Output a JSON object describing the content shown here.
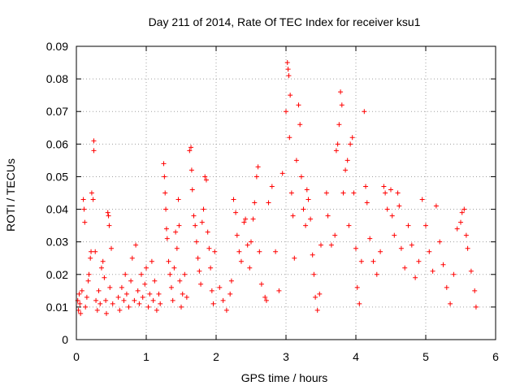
{
  "chart_data": {
    "type": "scatter",
    "title": "Day 211 of 2014, Rate Of TEC Index for receiver ksu1",
    "xlabel": "GPS time / hours",
    "ylabel": "ROTI / TECUs",
    "xlim": [
      0,
      6
    ],
    "ylim": [
      0,
      0.09
    ],
    "xticks": [
      0,
      1,
      2,
      3,
      4,
      5,
      6
    ],
    "yticks": [
      0,
      0.01,
      0.02,
      0.03,
      0.04,
      0.05,
      0.06,
      0.07,
      0.08,
      0.09
    ],
    "xtick_labels": [
      "0",
      "1",
      "2",
      "3",
      "4",
      "5",
      "6"
    ],
    "ytick_labels": [
      "0",
      "0.01",
      "0.02",
      "0.03",
      "0.04",
      "0.05",
      "0.06",
      "0.07",
      "0.08",
      "0.09"
    ],
    "grid": true,
    "marker": "+",
    "series_color": "#ff0000",
    "series": [
      {
        "name": "ROTI",
        "points": [
          [
            0.02,
            0.012
          ],
          [
            0.03,
            0.009
          ],
          [
            0.04,
            0.014
          ],
          [
            0.05,
            0.011
          ],
          [
            0.06,
            0.008
          ],
          [
            0.08,
            0.015
          ],
          [
            0.1,
            0.043
          ],
          [
            0.11,
            0.04
          ],
          [
            0.12,
            0.036
          ],
          [
            0.13,
            0.01
          ],
          [
            0.15,
            0.013
          ],
          [
            0.17,
            0.018
          ],
          [
            0.18,
            0.02
          ],
          [
            0.2,
            0.025
          ],
          [
            0.21,
            0.027
          ],
          [
            0.22,
            0.045
          ],
          [
            0.24,
            0.043
          ],
          [
            0.25,
            0.061
          ],
          [
            0.25,
            0.058
          ],
          [
            0.27,
            0.027
          ],
          [
            0.28,
            0.012
          ],
          [
            0.3,
            0.009
          ],
          [
            0.32,
            0.015
          ],
          [
            0.34,
            0.011
          ],
          [
            0.36,
            0.022
          ],
          [
            0.38,
            0.024
          ],
          [
            0.4,
            0.019
          ],
          [
            0.42,
            0.012
          ],
          [
            0.43,
            0.008
          ],
          [
            0.45,
            0.039
          ],
          [
            0.46,
            0.038
          ],
          [
            0.47,
            0.035
          ],
          [
            0.48,
            0.016
          ],
          [
            0.5,
            0.028
          ],
          [
            0.52,
            0.011
          ],
          [
            0.6,
            0.013
          ],
          [
            0.62,
            0.009
          ],
          [
            0.65,
            0.016
          ],
          [
            0.68,
            0.012
          ],
          [
            0.7,
            0.02
          ],
          [
            0.72,
            0.014
          ],
          [
            0.75,
            0.01
          ],
          [
            0.78,
            0.018
          ],
          [
            0.8,
            0.025
          ],
          [
            0.83,
            0.012
          ],
          [
            0.85,
            0.029
          ],
          [
            0.88,
            0.015
          ],
          [
            0.9,
            0.011
          ],
          [
            0.93,
            0.02
          ],
          [
            0.95,
            0.013
          ],
          [
            0.98,
            0.017
          ],
          [
            1.0,
            0.022
          ],
          [
            1.03,
            0.01
          ],
          [
            1.05,
            0.014
          ],
          [
            1.08,
            0.024
          ],
          [
            1.1,
            0.012
          ],
          [
            1.12,
            0.018
          ],
          [
            1.15,
            0.009
          ],
          [
            1.18,
            0.014
          ],
          [
            1.2,
            0.011
          ],
          [
            1.25,
            0.054
          ],
          [
            1.26,
            0.05
          ],
          [
            1.27,
            0.045
          ],
          [
            1.28,
            0.04
          ],
          [
            1.29,
            0.034
          ],
          [
            1.3,
            0.031
          ],
          [
            1.32,
            0.024
          ],
          [
            1.34,
            0.02
          ],
          [
            1.36,
            0.016
          ],
          [
            1.38,
            0.012
          ],
          [
            1.4,
            0.022
          ],
          [
            1.42,
            0.033
          ],
          [
            1.44,
            0.028
          ],
          [
            1.46,
            0.043
          ],
          [
            1.47,
            0.035
          ],
          [
            1.48,
            0.018
          ],
          [
            1.5,
            0.01
          ],
          [
            1.52,
            0.014
          ],
          [
            1.55,
            0.02
          ],
          [
            1.58,
            0.013
          ],
          [
            1.62,
            0.058
          ],
          [
            1.64,
            0.059
          ],
          [
            1.65,
            0.052
          ],
          [
            1.66,
            0.046
          ],
          [
            1.68,
            0.038
          ],
          [
            1.7,
            0.035
          ],
          [
            1.72,
            0.03
          ],
          [
            1.74,
            0.025
          ],
          [
            1.76,
            0.021
          ],
          [
            1.78,
            0.017
          ],
          [
            1.8,
            0.036
          ],
          [
            1.82,
            0.04
          ],
          [
            1.84,
            0.05
          ],
          [
            1.86,
            0.049
          ],
          [
            1.88,
            0.033
          ],
          [
            1.9,
            0.028
          ],
          [
            1.92,
            0.022
          ],
          [
            1.94,
            0.015
          ],
          [
            1.96,
            0.011
          ],
          [
            1.98,
            0.027
          ],
          [
            2.05,
            0.016
          ],
          [
            2.1,
            0.012
          ],
          [
            2.15,
            0.009
          ],
          [
            2.2,
            0.014
          ],
          [
            2.22,
            0.018
          ],
          [
            2.25,
            0.043
          ],
          [
            2.28,
            0.039
          ],
          [
            2.3,
            0.032
          ],
          [
            2.33,
            0.027
          ],
          [
            2.36,
            0.024
          ],
          [
            2.4,
            0.036
          ],
          [
            2.42,
            0.037
          ],
          [
            2.45,
            0.029
          ],
          [
            2.48,
            0.022
          ],
          [
            2.5,
            0.03
          ],
          [
            2.53,
            0.037
          ],
          [
            2.55,
            0.042
          ],
          [
            2.58,
            0.05
          ],
          [
            2.6,
            0.053
          ],
          [
            2.62,
            0.027
          ],
          [
            2.65,
            0.017
          ],
          [
            2.7,
            0.013
          ],
          [
            2.72,
            0.012
          ],
          [
            2.75,
            0.042
          ],
          [
            2.8,
            0.047
          ],
          [
            2.85,
            0.027
          ],
          [
            2.9,
            0.015
          ],
          [
            2.95,
            0.051
          ],
          [
            3.0,
            0.07
          ],
          [
            3.02,
            0.085
          ],
          [
            3.03,
            0.083
          ],
          [
            3.04,
            0.081
          ],
          [
            3.05,
            0.062
          ],
          [
            3.06,
            0.075
          ],
          [
            3.08,
            0.045
          ],
          [
            3.1,
            0.038
          ],
          [
            3.12,
            0.025
          ],
          [
            3.15,
            0.055
          ],
          [
            3.18,
            0.072
          ],
          [
            3.2,
            0.066
          ],
          [
            3.22,
            0.05
          ],
          [
            3.25,
            0.04
          ],
          [
            3.28,
            0.035
          ],
          [
            3.3,
            0.046
          ],
          [
            3.32,
            0.043
          ],
          [
            3.35,
            0.037
          ],
          [
            3.38,
            0.026
          ],
          [
            3.4,
            0.02
          ],
          [
            3.42,
            0.013
          ],
          [
            3.45,
            0.009
          ],
          [
            3.48,
            0.014
          ],
          [
            3.5,
            0.029
          ],
          [
            3.58,
            0.045
          ],
          [
            3.6,
            0.038
          ],
          [
            3.65,
            0.029
          ],
          [
            3.7,
            0.032
          ],
          [
            3.72,
            0.058
          ],
          [
            3.74,
            0.06
          ],
          [
            3.76,
            0.066
          ],
          [
            3.78,
            0.076
          ],
          [
            3.8,
            0.072
          ],
          [
            3.82,
            0.045
          ],
          [
            3.85,
            0.052
          ],
          [
            3.88,
            0.055
          ],
          [
            3.9,
            0.035
          ],
          [
            3.92,
            0.06
          ],
          [
            3.95,
            0.062
          ],
          [
            3.97,
            0.045
          ],
          [
            4.0,
            0.028
          ],
          [
            4.02,
            0.016
          ],
          [
            4.05,
            0.011
          ],
          [
            4.08,
            0.024
          ],
          [
            4.12,
            0.07
          ],
          [
            4.14,
            0.047
          ],
          [
            4.16,
            0.042
          ],
          [
            4.2,
            0.031
          ],
          [
            4.25,
            0.024
          ],
          [
            4.3,
            0.02
          ],
          [
            4.35,
            0.027
          ],
          [
            4.4,
            0.047
          ],
          [
            4.42,
            0.045
          ],
          [
            4.45,
            0.04
          ],
          [
            4.5,
            0.046
          ],
          [
            4.52,
            0.038
          ],
          [
            4.55,
            0.032
          ],
          [
            4.6,
            0.045
          ],
          [
            4.62,
            0.041
          ],
          [
            4.65,
            0.028
          ],
          [
            4.7,
            0.022
          ],
          [
            4.75,
            0.035
          ],
          [
            4.8,
            0.029
          ],
          [
            4.85,
            0.019
          ],
          [
            4.9,
            0.024
          ],
          [
            4.95,
            0.043
          ],
          [
            5.0,
            0.035
          ],
          [
            5.05,
            0.027
          ],
          [
            5.1,
            0.021
          ],
          [
            5.15,
            0.041
          ],
          [
            5.2,
            0.03
          ],
          [
            5.25,
            0.023
          ],
          [
            5.3,
            0.016
          ],
          [
            5.35,
            0.011
          ],
          [
            5.4,
            0.02
          ],
          [
            5.45,
            0.034
          ],
          [
            5.5,
            0.036
          ],
          [
            5.52,
            0.039
          ],
          [
            5.55,
            0.04
          ],
          [
            5.58,
            0.032
          ],
          [
            5.6,
            0.028
          ],
          [
            5.65,
            0.021
          ],
          [
            5.7,
            0.015
          ],
          [
            5.72,
            0.01
          ]
        ]
      }
    ]
  }
}
